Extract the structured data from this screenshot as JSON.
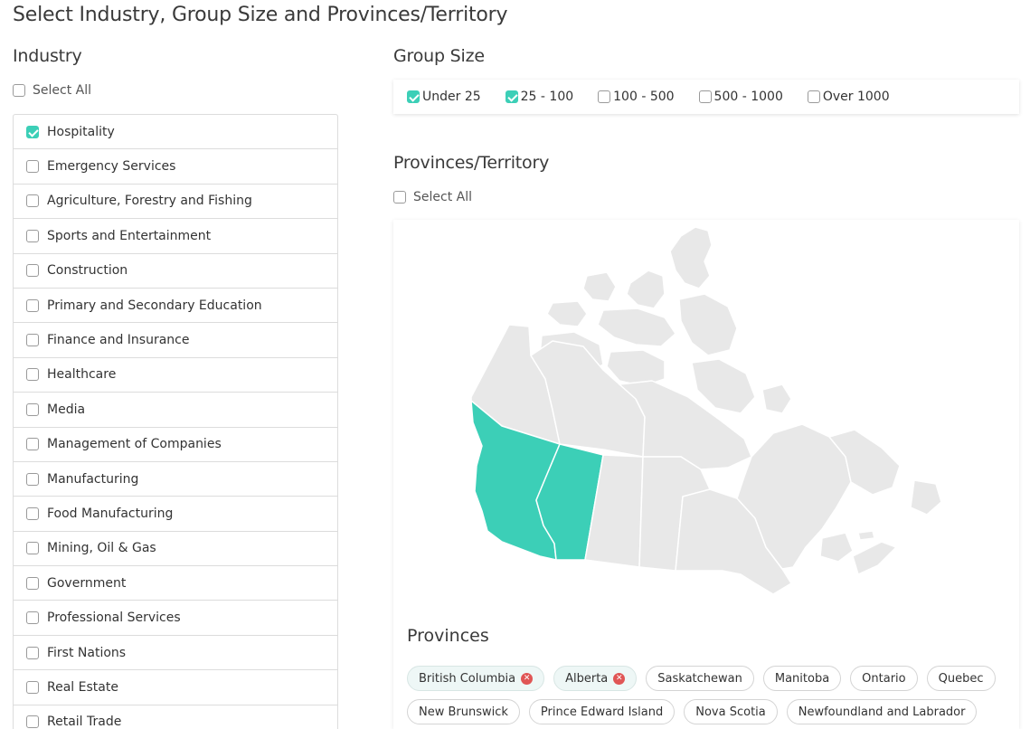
{
  "page": {
    "title": "Select Industry, Group Size and Provinces/Territory"
  },
  "industry": {
    "title": "Industry",
    "select_all_label": "Select All",
    "select_all_checked": false,
    "items": [
      {
        "label": "Hospitality",
        "checked": true
      },
      {
        "label": "Emergency Services",
        "checked": false
      },
      {
        "label": "Agriculture, Forestry and Fishing",
        "checked": false
      },
      {
        "label": "Sports and Entertainment",
        "checked": false
      },
      {
        "label": "Construction",
        "checked": false
      },
      {
        "label": "Primary and Secondary Education",
        "checked": false
      },
      {
        "label": "Finance and Insurance",
        "checked": false
      },
      {
        "label": "Healthcare",
        "checked": false
      },
      {
        "label": "Media",
        "checked": false
      },
      {
        "label": "Management of Companies",
        "checked": false
      },
      {
        "label": "Manufacturing",
        "checked": false
      },
      {
        "label": "Food Manufacturing",
        "checked": false
      },
      {
        "label": "Mining, Oil & Gas",
        "checked": false
      },
      {
        "label": "Government",
        "checked": false
      },
      {
        "label": "Professional Services",
        "checked": false
      },
      {
        "label": "First Nations",
        "checked": false
      },
      {
        "label": "Real Estate",
        "checked": false
      },
      {
        "label": "Retail Trade",
        "checked": false
      }
    ]
  },
  "group_size": {
    "title": "Group Size",
    "options": [
      {
        "label": "Under 25",
        "checked": true
      },
      {
        "label": "25 - 100",
        "checked": true
      },
      {
        "label": "100 - 500",
        "checked": false
      },
      {
        "label": "500 - 1000",
        "checked": false
      },
      {
        "label": "Over 1000",
        "checked": false
      }
    ]
  },
  "provinces_territory": {
    "title": "Provinces/Territory",
    "select_all_label": "Select All",
    "select_all_checked": false
  },
  "map": {
    "selected_color": "#3ccfb7",
    "unselected_color": "#e8e8e8",
    "border_color": "#ffffff",
    "selected_regions": [
      "British Columbia",
      "Alberta"
    ]
  },
  "provinces": {
    "title": "Provinces",
    "chips": [
      {
        "label": "British Columbia",
        "selected": true
      },
      {
        "label": "Alberta",
        "selected": true
      },
      {
        "label": "Saskatchewan",
        "selected": false
      },
      {
        "label": "Manitoba",
        "selected": false
      },
      {
        "label": "Ontario",
        "selected": false
      },
      {
        "label": "Quebec",
        "selected": false
      },
      {
        "label": "New Brunswick",
        "selected": false
      },
      {
        "label": "Prince Edward Island",
        "selected": false
      },
      {
        "label": "Nova Scotia",
        "selected": false
      },
      {
        "label": "Newfoundland and Labrador",
        "selected": false
      }
    ],
    "remove_icon": "close-circle-icon"
  }
}
